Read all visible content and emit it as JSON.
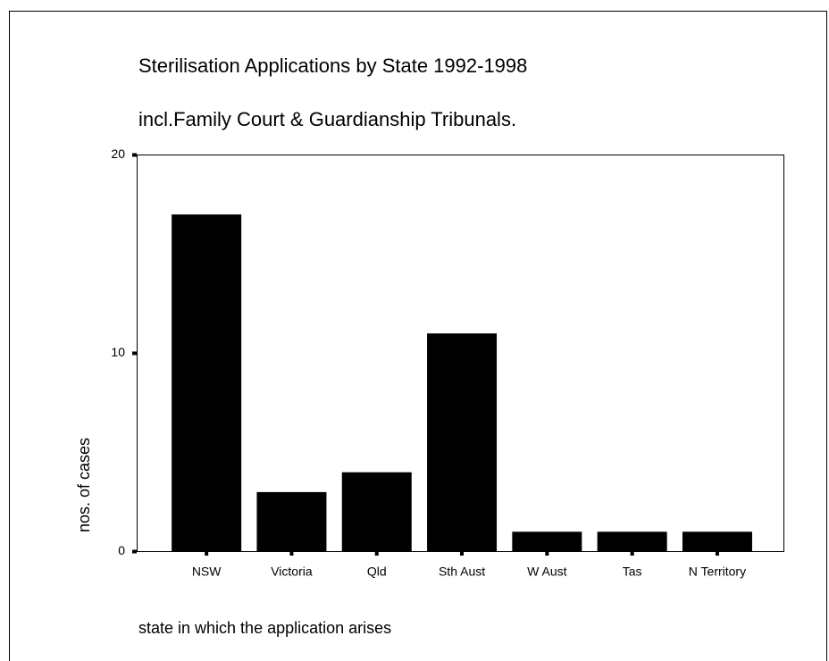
{
  "chart_data": {
    "type": "bar",
    "title": "Sterilisation Applications by State 1992-1998",
    "subtitle": "incl.Family Court & Guardianship Tribunals.",
    "x_label": "state in which the application arises",
    "y_label": "nos. of cases",
    "categories": [
      "NSW",
      "Victoria",
      "Qld",
      "Sth Aust",
      "W Aust",
      "Tas",
      "N Territory"
    ],
    "values": [
      17,
      3,
      4,
      11,
      1,
      1,
      1
    ],
    "color": "#000000",
    "ylim": [
      0,
      20
    ],
    "yticks": [
      0,
      10,
      20
    ],
    "grid": false
  }
}
